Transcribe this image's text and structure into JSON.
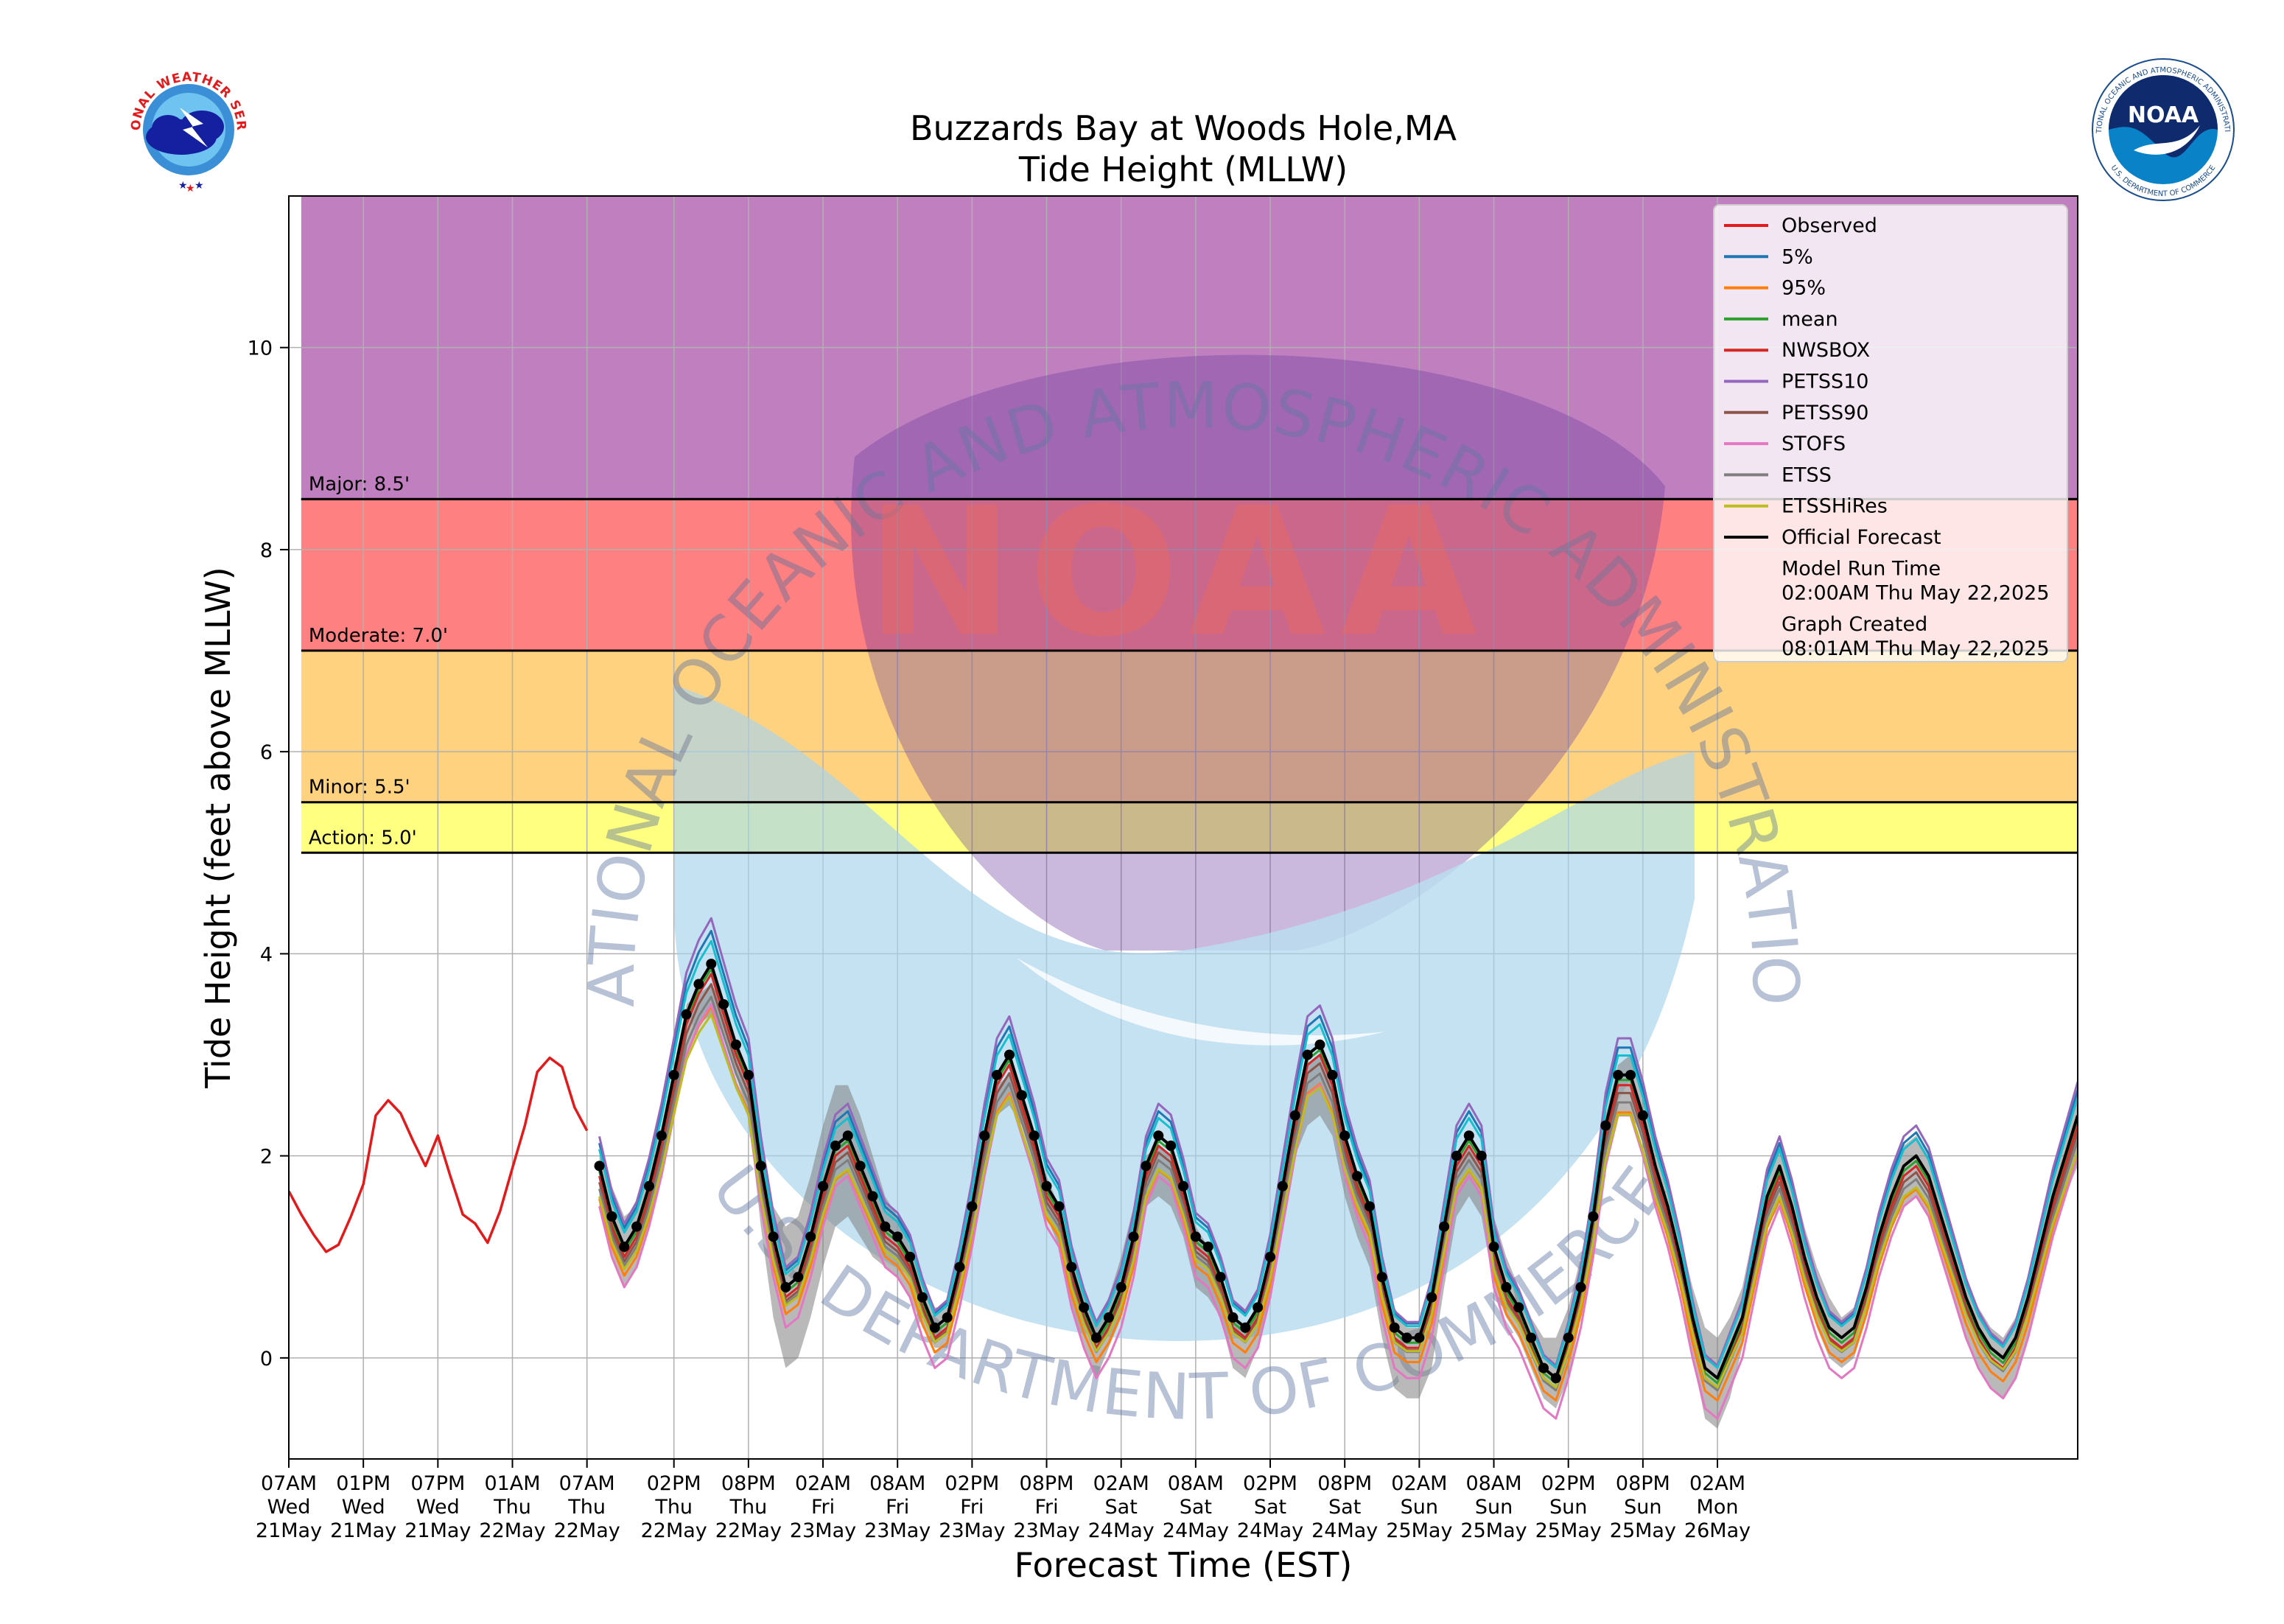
{
  "logos": {
    "nws_text": "NATIONAL WEATHER SERVICE",
    "noaa_text": "NOAA",
    "noaa_ring_text": "NATIONAL OCEANIC AND ATMOSPHERIC ADMINISTRATION",
    "noaa_bottom_text": "U.S. DEPARTMENT OF COMMERCE"
  },
  "watermark": {
    "top_text": "NATIONAL OCEANIC AND ATMOSPHERIC ADMINISTRATION",
    "bottom_text": "U.S. DEPARTMENT OF COMMERCE",
    "center_text": "NOAA"
  },
  "chart_data": {
    "type": "line",
    "title": "Buzzards Bay at Woods Hole,MA",
    "subtitle": "Tide Height (MLLW)",
    "xlabel": "Forecast Time (EST)",
    "ylabel": "Tide Height (feet above MLLW)",
    "x_unit": "hours after 07AM Wed 21May",
    "xlim": [
      0,
      144
    ],
    "ylim": [
      -1,
      11.5
    ],
    "yticks": [
      0,
      2,
      4,
      6,
      8,
      10
    ],
    "grid": true,
    "xticks": [
      {
        "x": 0,
        "l1": "07AM",
        "l2": "Wed",
        "l3": "21May"
      },
      {
        "x": 6,
        "l1": "01PM",
        "l2": "Wed",
        "l3": "21May"
      },
      {
        "x": 12,
        "l1": "07PM",
        "l2": "Wed",
        "l3": "21May"
      },
      {
        "x": 18,
        "l1": "01AM",
        "l2": "Thu",
        "l3": "22May"
      },
      {
        "x": 24,
        "l1": "07AM",
        "l2": "Thu",
        "l3": "22May"
      },
      {
        "x": 31,
        "l1": "02PM",
        "l2": "Thu",
        "l3": "22May"
      },
      {
        "x": 37,
        "l1": "08PM",
        "l2": "Thu",
        "l3": "22May"
      },
      {
        "x": 43,
        "l1": "02AM",
        "l2": "Fri",
        "l3": "23May"
      },
      {
        "x": 49,
        "l1": "08AM",
        "l2": "Fri",
        "l3": "23May"
      },
      {
        "x": 55,
        "l1": "02PM",
        "l2": "Fri",
        "l3": "23May"
      },
      {
        "x": 61,
        "l1": "08PM",
        "l2": "Fri",
        "l3": "23May"
      },
      {
        "x": 67,
        "l1": "02AM",
        "l2": "Sat",
        "l3": "24May"
      },
      {
        "x": 73,
        "l1": "08AM",
        "l2": "Sat",
        "l3": "24May"
      },
      {
        "x": 79,
        "l1": "02PM",
        "l2": "Sat",
        "l3": "24May"
      },
      {
        "x": 85,
        "l1": "08PM",
        "l2": "Sat",
        "l3": "24May"
      },
      {
        "x": 91,
        "l1": "02AM",
        "l2": "Sun",
        "l3": "25May"
      },
      {
        "x": 97,
        "l1": "08AM",
        "l2": "Sun",
        "l3": "25May"
      },
      {
        "x": 103,
        "l1": "02PM",
        "l2": "Sun",
        "l3": "25May"
      },
      {
        "x": 109,
        "l1": "08PM",
        "l2": "Sun",
        "l3": "25May"
      },
      {
        "x": 115,
        "l1": "02AM",
        "l2": "Mon",
        "l3": "26May"
      }
    ],
    "flood_bands": [
      {
        "name": "Action",
        "label": "Action: 5.0'",
        "from": 5.0,
        "to": 5.5,
        "color": "#ffff80"
      },
      {
        "name": "Minor",
        "label": "Minor: 5.5'",
        "from": 5.5,
        "to": 7.0,
        "color": "#ffd280"
      },
      {
        "name": "Moderate",
        "label": "Moderate: 7.0'",
        "from": 7.0,
        "to": 8.5,
        "color": "#ff8080"
      },
      {
        "name": "Major",
        "label": "Major: 8.5'",
        "from": 8.5,
        "to": 11.5,
        "color": "#c080c0"
      }
    ],
    "legend": {
      "position": "top-right",
      "model_run_label": "Model Run Time",
      "model_run_value": "02:00AM Thu May 22,2025",
      "graph_created_label": "Graph Created",
      "graph_created_value": "08:01AM Thu May 22,2025"
    },
    "observed": {
      "name": "Observed",
      "color": "#e31a1c",
      "x": [
        0,
        1,
        2,
        3,
        4,
        5,
        6,
        7,
        8,
        9,
        10,
        11,
        12,
        13,
        14,
        15,
        16,
        17,
        18,
        19,
        20,
        21,
        22,
        23,
        24,
        25
      ],
      "y": [
        1.65,
        1.42,
        1.22,
        1.05,
        1.12,
        1.4,
        1.72,
        2.4,
        2.55,
        2.42,
        2.15,
        1.9,
        2.2,
        1.8,
        1.42,
        1.33,
        1.14,
        1.45,
        1.88,
        2.3,
        2.83,
        2.97,
        2.88,
        2.48,
        2.25,
        null
      ]
    },
    "forecast_x": [
      25,
      26,
      27,
      28,
      29,
      30,
      31,
      32,
      33,
      34,
      35,
      36,
      37,
      38,
      39,
      40,
      41,
      42,
      43,
      44,
      45,
      46,
      47,
      48,
      49,
      50,
      51,
      52,
      53,
      54,
      55,
      56,
      57,
      58,
      59,
      60,
      61,
      62,
      63,
      64,
      65,
      66,
      67,
      68,
      69,
      70,
      71,
      72,
      73,
      74,
      75,
      76,
      77,
      78,
      79,
      80,
      81,
      82,
      83,
      84,
      85,
      86,
      87,
      88,
      89,
      90,
      91,
      92,
      93,
      94,
      95,
      96,
      97,
      98,
      99,
      100,
      101,
      102,
      103,
      104,
      105,
      106,
      107,
      108,
      109,
      110,
      111,
      112,
      113,
      114,
      115,
      116,
      117,
      118,
      119,
      120,
      121,
      122,
      123,
      124,
      125,
      126,
      127,
      128,
      129,
      130,
      131,
      132,
      133,
      134,
      135,
      136,
      137,
      138,
      139,
      140,
      141,
      142,
      143,
      144
    ],
    "official": {
      "name": "Official Forecast",
      "color": "#000000",
      "y": [
        1.9,
        1.4,
        1.1,
        1.3,
        1.7,
        2.2,
        2.8,
        3.4,
        3.7,
        3.9,
        3.5,
        3.1,
        2.8,
        1.9,
        1.2,
        0.7,
        0.8,
        1.2,
        1.7,
        2.1,
        2.2,
        1.9,
        1.6,
        1.3,
        1.2,
        1.0,
        0.6,
        0.3,
        0.4,
        0.9,
        1.5,
        2.2,
        2.8,
        3.0,
        2.6,
        2.2,
        1.7,
        1.5,
        0.9,
        0.5,
        0.2,
        0.4,
        0.7,
        1.2,
        1.9,
        2.2,
        2.1,
        1.7,
        1.2,
        1.1,
        0.8,
        0.4,
        0.3,
        0.5,
        1.0,
        1.7,
        2.4,
        3.0,
        3.1,
        2.8,
        2.2,
        1.8,
        1.5,
        0.8,
        0.3,
        0.2,
        0.2,
        0.6,
        1.3,
        2.0,
        2.2,
        2.0,
        1.1,
        0.7,
        0.5,
        0.2,
        -0.1,
        -0.2,
        0.2,
        0.7,
        1.4,
        2.3,
        2.8,
        2.8,
        2.4,
        1.9,
        1.5,
        1.0,
        0.4,
        -0.1,
        -0.2,
        0.1,
        0.4,
        1.0,
        1.6,
        1.9,
        1.5,
        1.0,
        0.6,
        0.3,
        0.2,
        0.3,
        0.7,
        1.2,
        1.6,
        1.9,
        2.0,
        1.8,
        1.4,
        1.0,
        0.6,
        0.3,
        0.1,
        0.0,
        0.2,
        0.6,
        1.1,
        1.6,
        2.0,
        2.4
      ],
      "points_until_x": 109
    },
    "shade_low": [
      1.5,
      1.0,
      0.7,
      0.9,
      1.3,
      1.8,
      2.4,
      3.0,
      3.3,
      3.4,
      3.2,
      2.8,
      2.4,
      1.3,
      0.4,
      -0.1,
      0.0,
      0.4,
      0.9,
      1.3,
      1.4,
      1.2,
      1.0,
      0.9,
      0.8,
      0.6,
      0.3,
      0.1,
      0.1,
      0.6,
      1.2,
      2.0,
      2.4,
      2.5,
      2.3,
      1.9,
      1.4,
      1.1,
      0.5,
      0.1,
      -0.2,
      0.1,
      0.4,
      1.0,
      1.5,
      1.6,
      1.5,
      1.2,
      0.7,
      0.6,
      0.4,
      -0.1,
      -0.2,
      0.1,
      0.6,
      1.4,
      2.0,
      2.3,
      2.4,
      2.2,
      1.6,
      1.2,
      0.9,
      0.2,
      -0.3,
      -0.4,
      -0.4,
      -0.1,
      0.7,
      1.4,
      1.6,
      1.4,
      0.7,
      0.4,
      0.2,
      -0.1,
      -0.4,
      -0.5,
      -0.2,
      0.4,
      1.1,
      2.0,
      2.4,
      2.4,
      2.2,
      1.6,
      1.2,
      0.7,
      0.0,
      -0.6,
      -0.7,
      -0.4,
      0.1,
      0.7,
      1.3,
      1.5,
      1.2,
      0.7,
      0.3,
      0.0,
      -0.1,
      0.0,
      0.4,
      0.9,
      1.3,
      1.5,
      1.6,
      1.4,
      1.0,
      0.6,
      0.2,
      -0.1,
      -0.3,
      -0.4,
      -0.2,
      0.2,
      0.7,
      1.2,
      1.6,
      1.9
    ],
    "shade_high": [
      2.0,
      1.7,
      1.4,
      1.5,
      1.9,
      2.3,
      2.9,
      3.5,
      3.6,
      3.7,
      3.5,
      3.1,
      2.8,
      2.1,
      1.5,
      1.3,
      1.4,
      1.8,
      2.3,
      2.7,
      2.7,
      2.4,
      2.0,
      1.6,
      1.4,
      1.1,
      0.8,
      0.5,
      0.5,
      1.0,
      1.6,
      2.2,
      2.7,
      2.8,
      2.6,
      2.2,
      1.8,
      1.5,
      1.0,
      0.6,
      0.3,
      0.6,
      1.0,
      1.5,
      2.0,
      2.1,
      2.0,
      1.7,
      1.3,
      1.1,
      0.8,
      0.4,
      0.3,
      0.5,
      1.0,
      1.7,
      2.4,
      2.9,
      3.0,
      2.7,
      2.1,
      1.7,
      1.5,
      0.9,
      0.5,
      0.3,
      0.3,
      0.7,
      1.3,
      1.9,
      2.1,
      1.9,
      1.4,
      1.0,
      0.7,
      0.4,
      0.2,
      0.2,
      0.5,
      1.0,
      1.6,
      2.4,
      2.9,
      3.0,
      2.6,
      2.1,
      1.7,
      1.2,
      0.7,
      0.3,
      0.2,
      0.4,
      0.7,
      1.3,
      1.8,
      2.1,
      1.8,
      1.3,
      0.9,
      0.6,
      0.4,
      0.5,
      0.9,
      1.4,
      1.8,
      2.1,
      2.2,
      2.0,
      1.6,
      1.2,
      0.8,
      0.5,
      0.3,
      0.2,
      0.4,
      0.8,
      1.3,
      1.8,
      2.2,
      2.6
    ],
    "series": [
      {
        "name": "5%",
        "color": "#1f77b4",
        "offset": 0.2,
        "amp": 1.05
      },
      {
        "name": "95%",
        "color": "#ff7f0e",
        "offset": -0.3,
        "amp": 0.95
      },
      {
        "name": "mean",
        "color": "#2ca02c",
        "offset": -0.05,
        "amp": 1.0
      },
      {
        "name": "NWSBOX",
        "color": "#d62728",
        "offset": -0.1,
        "amp": 1.0
      },
      {
        "name": "PETSS10",
        "color": "#9467bd",
        "offset": 0.25,
        "amp": 1.08
      },
      {
        "name": "PETSS90",
        "color": "#8c564b",
        "offset": -0.15,
        "amp": 0.98
      },
      {
        "name": "STOFS",
        "color": "#e377c2",
        "offset": -0.4,
        "amp": 1.0
      },
      {
        "name": "ETSS",
        "color": "#7f7f7f",
        "offset": -0.2,
        "amp": 0.95
      },
      {
        "name": "ETSSHiRes",
        "color": "#bcbd22",
        "offset": -0.25,
        "amp": 0.9
      }
    ],
    "extra_teal": {
      "name": "",
      "color": "#17becf",
      "offset": 0.15,
      "amp": 1.03
    }
  }
}
